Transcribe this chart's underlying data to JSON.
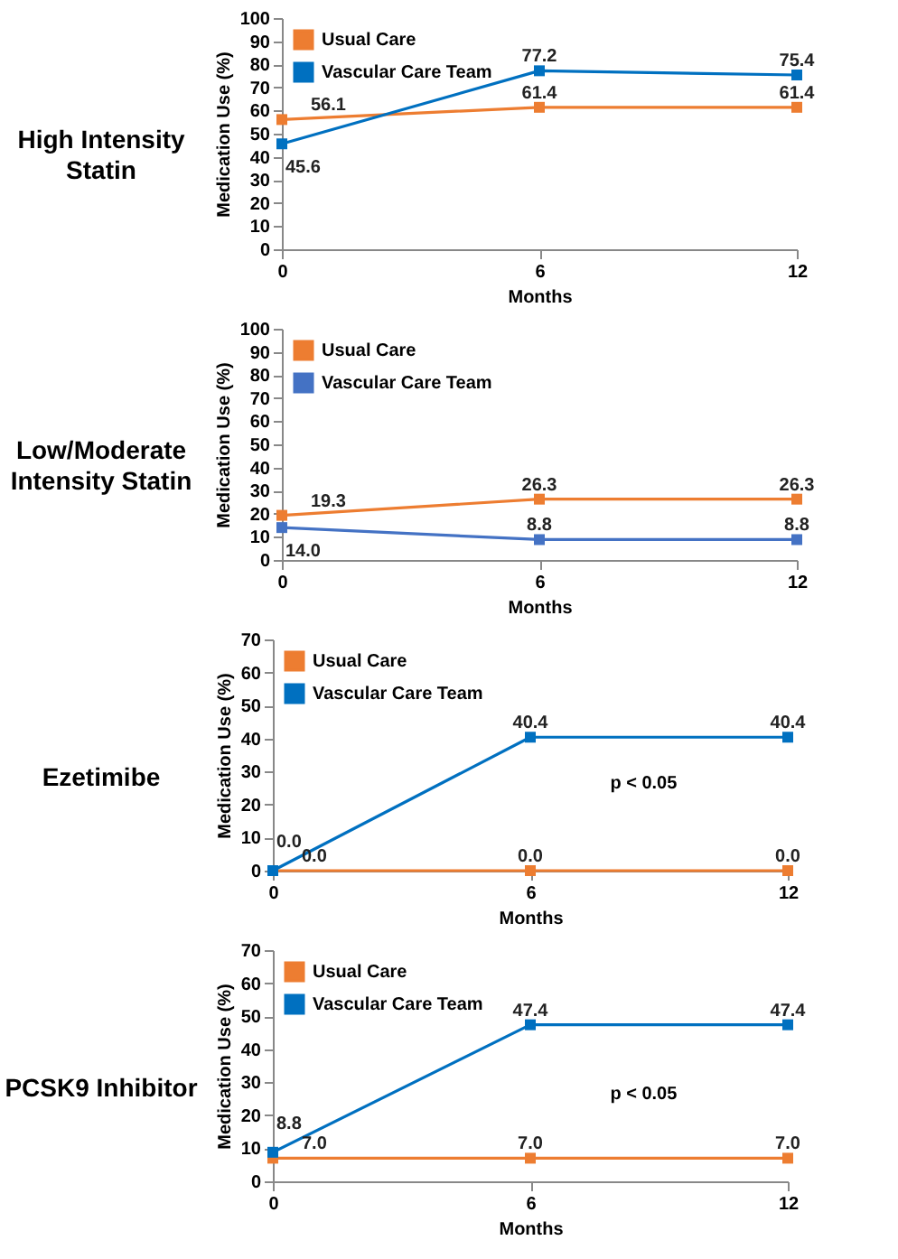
{
  "chart_data": [
    {
      "type": "line",
      "title": "High Intensity Statin",
      "xlabel": "Months",
      "ylabel": "Medication Use (%)",
      "x": [
        0,
        6,
        12
      ],
      "xlim": [
        0,
        12
      ],
      "xticks": [
        0,
        6,
        12
      ],
      "ylim": [
        0,
        100
      ],
      "yticks": [
        0,
        10,
        20,
        30,
        40,
        50,
        60,
        70,
        80,
        90,
        100
      ],
      "legend": "top left",
      "marker": "square",
      "line_style": "solid",
      "series": [
        {
          "name": "Usual Care",
          "color": "#ed7d31",
          "values": [
            56.1,
            61.4,
            61.4
          ],
          "value_labels": [
            "56.1",
            "61.4",
            "61.4"
          ]
        },
        {
          "name": "Vascular Care Team",
          "color": "#0070c0",
          "values": [
            45.6,
            77.2,
            75.4
          ],
          "value_labels": [
            "45.6",
            "77.2",
            "75.4"
          ]
        }
      ]
    },
    {
      "type": "line",
      "title": "Low/Moderate Intensity Statin",
      "xlabel": "Months",
      "ylabel": "Medication Use (%)",
      "x": [
        0,
        6,
        12
      ],
      "xlim": [
        0,
        12
      ],
      "xticks": [
        0,
        6,
        12
      ],
      "ylim": [
        0,
        100
      ],
      "yticks": [
        0,
        10,
        20,
        30,
        40,
        50,
        60,
        70,
        80,
        90,
        100
      ],
      "legend": "top left",
      "marker": "square",
      "line_style": "solid",
      "series": [
        {
          "name": "Usual Care",
          "color": "#ed7d31",
          "values": [
            19.3,
            26.3,
            26.3
          ],
          "value_labels": [
            "19.3",
            "26.3",
            "26.3"
          ]
        },
        {
          "name": "Vascular Care Team",
          "color": "#4472c4",
          "values": [
            14.0,
            8.8,
            8.8
          ],
          "value_labels": [
            "14.0",
            "8.8",
            "8.8"
          ]
        }
      ]
    },
    {
      "type": "line",
      "title": "Ezetimibe",
      "xlabel": "Months",
      "ylabel": "Medication Use (%)",
      "x": [
        0,
        6,
        12
      ],
      "xlim": [
        0,
        12
      ],
      "xticks": [
        0,
        6,
        12
      ],
      "ylim": [
        0,
        70
      ],
      "yticks": [
        0,
        10,
        20,
        30,
        40,
        50,
        60,
        70
      ],
      "legend": "top left",
      "marker": "square",
      "line_style": "solid",
      "annotations": [
        "p < 0.05"
      ],
      "series": [
        {
          "name": "Usual Care",
          "color": "#ed7d31",
          "values": [
            0.0,
            0.0,
            0.0
          ],
          "value_labels": [
            "0.0",
            "0.0",
            "0.0"
          ]
        },
        {
          "name": "Vascular Care Team",
          "color": "#0070c0",
          "values": [
            0.0,
            40.4,
            40.4
          ],
          "value_labels": [
            "0.0",
            "40.4",
            "40.4"
          ]
        }
      ]
    },
    {
      "type": "line",
      "title": "PCSK9 Inhibitor",
      "xlabel": "Months",
      "ylabel": "Medication Use (%)",
      "x": [
        0,
        6,
        12
      ],
      "xlim": [
        0,
        12
      ],
      "xticks": [
        0,
        6,
        12
      ],
      "ylim": [
        0,
        70
      ],
      "yticks": [
        0,
        10,
        20,
        30,
        40,
        50,
        60,
        70
      ],
      "legend": "top left",
      "marker": "square",
      "line_style": "solid",
      "annotations": [
        "p < 0.05"
      ],
      "series": [
        {
          "name": "Usual Care",
          "color": "#ed7d31",
          "values": [
            7.0,
            7.0,
            7.0
          ],
          "value_labels": [
            "7.0",
            "7.0",
            "7.0"
          ]
        },
        {
          "name": "Vascular Care Team",
          "color": "#0070c0",
          "values": [
            8.8,
            47.4,
            47.4
          ],
          "value_labels": [
            "8.8",
            "47.4",
            "47.4"
          ]
        }
      ]
    }
  ]
}
